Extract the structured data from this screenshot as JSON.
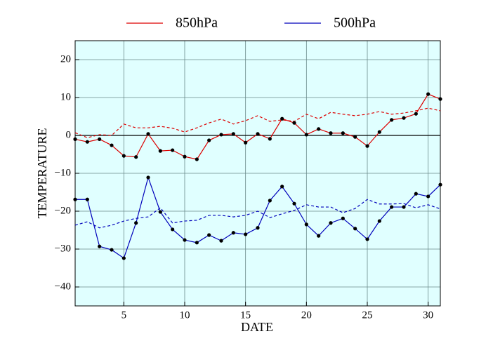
{
  "chart_data": {
    "type": "line",
    "xlabel": "DATE",
    "ylabel": "TEMPERATURE",
    "x": [
      1,
      2,
      3,
      4,
      5,
      6,
      7,
      8,
      9,
      10,
      11,
      12,
      13,
      14,
      15,
      16,
      17,
      18,
      19,
      20,
      21,
      22,
      23,
      24,
      25,
      26,
      27,
      28,
      29,
      30,
      31
    ],
    "series": [
      {
        "name": "850hPa",
        "color": "#dd0000",
        "values": [
          -1,
          -1.7,
          -1,
          -2.6,
          -5.4,
          -5.7,
          0.4,
          -4.1,
          -3.9,
          -5.6,
          -6.3,
          -1.3,
          0.2,
          0.4,
          -1.9,
          0.4,
          -0.9,
          4.4,
          3.3,
          0.2,
          1.7,
          0.6,
          0.6,
          -0.4,
          -2.8,
          0.9,
          4.1,
          4.6,
          5.7,
          10.9,
          9.6
        ],
        "dashed_values": [
          0.7,
          -0.6,
          0.2,
          0,
          3,
          2,
          2,
          2.4,
          1.9,
          0.9,
          2,
          3.3,
          4.3,
          3,
          3.9,
          5.2,
          3.7,
          4.1,
          3.7,
          5.6,
          4.4,
          6.1,
          5.6,
          5.2,
          5.6,
          6.3,
          5.6,
          5.9,
          6.5,
          7.2,
          6.5
        ]
      },
      {
        "name": "500hPa",
        "color": "#0000bb",
        "values": [
          -16.9,
          -16.9,
          -29.3,
          -30.2,
          -32.4,
          -23.1,
          -11.1,
          -20.2,
          -24.8,
          -27.6,
          -28.3,
          -26.3,
          -27.8,
          -25.7,
          -26.1,
          -24.4,
          -17.2,
          -13.5,
          -18,
          -23.5,
          -26.5,
          -23.1,
          -21.9,
          -24.6,
          -27.4,
          -22.6,
          -18.9,
          -18.9,
          -15.4,
          -16.1,
          -13
        ],
        "dashed_values": [
          -23.7,
          -22.8,
          -24.4,
          -23.7,
          -22.6,
          -21.9,
          -21.5,
          -19.1,
          -23.1,
          -22.6,
          -22.4,
          -21.1,
          -21.1,
          -21.5,
          -21.1,
          -20,
          -21.7,
          -20.7,
          -19.8,
          -18.3,
          -18.9,
          -18.9,
          -20.4,
          -19.3,
          -16.9,
          -18.1,
          -18.1,
          -18,
          -19.1,
          -18.3,
          -19.4
        ]
      }
    ],
    "xlim": [
      1,
      31
    ],
    "xticks": [
      5,
      10,
      15,
      20,
      25,
      30
    ],
    "ylim": [
      -45,
      25
    ],
    "yticks": [
      {
        "value": -40,
        "label": "−40"
      },
      {
        "value": -30,
        "label": "−30"
      },
      {
        "value": -20,
        "label": "−20"
      },
      {
        "value": -10,
        "label": "−10"
      },
      0,
      10,
      20
    ],
    "grid": true,
    "background": "#e0ffff",
    "zero_line": true,
    "legend": "top"
  }
}
